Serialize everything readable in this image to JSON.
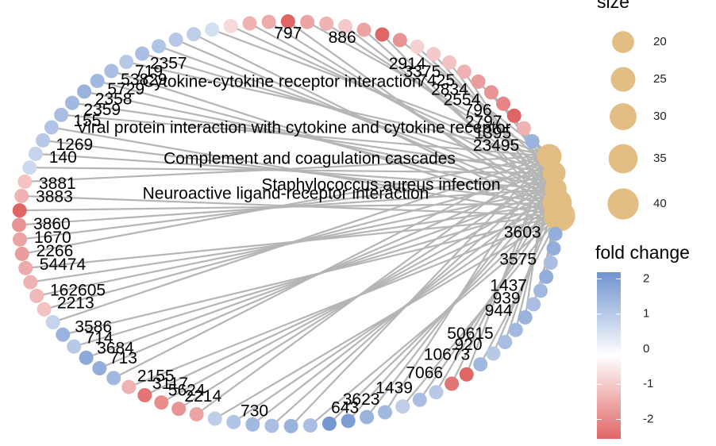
{
  "size_legend": {
    "title": "size",
    "values": [
      20,
      25,
      30,
      35,
      40
    ]
  },
  "color_legend": {
    "title": "fold change",
    "ticks": [
      2,
      1,
      0,
      -1,
      -2
    ],
    "colors": [
      "#e06666",
      "#ffffff",
      "#6f93cf"
    ]
  },
  "pathways": [
    {
      "label": "Cytokine-cytokine receptor interaction",
      "size": 40
    },
    {
      "label": "Viral protein interaction with cytokine and cytokine receptor",
      "size": 25
    },
    {
      "label": "Complement and coagulation cascades",
      "size": 22
    },
    {
      "label": "Staphylococcus aureus infection",
      "size": 20
    },
    {
      "label": "Neuroactive ligand-receptor interaction",
      "size": 35
    }
  ],
  "genes": [
    {
      "label": "3603",
      "fold_change": 1.5
    },
    {
      "label": null,
      "fold_change": 1.5
    },
    {
      "label": "3575",
      "fold_change": 1.2
    },
    {
      "label": null,
      "fold_change": 1.5
    },
    {
      "label": "1437",
      "fold_change": 1.3
    },
    {
      "label": "939",
      "fold_change": 1.2
    },
    {
      "label": "944",
      "fold_change": 1.4
    },
    {
      "label": null,
      "fold_change": 1.3
    },
    {
      "label": "50615",
      "fold_change": 1.2
    },
    {
      "label": "920",
      "fold_change": 1.0
    },
    {
      "label": "10673",
      "fold_change": 1.3
    },
    {
      "label": null,
      "fold_change": -2.0
    },
    {
      "label": "7066",
      "fold_change": -1.8
    },
    {
      "label": null,
      "fold_change": 1.0
    },
    {
      "label": "1439",
      "fold_change": 1.2
    },
    {
      "label": null,
      "fold_change": 0.9
    },
    {
      "label": "3623",
      "fold_change": 1.3
    },
    {
      "label": null,
      "fold_change": 1.4
    },
    {
      "label": "643",
      "fold_change": 1.8
    },
    {
      "label": null,
      "fold_change": 1.9
    },
    {
      "label": null,
      "fold_change": 1.2
    },
    {
      "label": null,
      "fold_change": 1.4
    },
    {
      "label": null,
      "fold_change": 1.2
    },
    {
      "label": "730",
      "fold_change": 1.3
    },
    {
      "label": null,
      "fold_change": 1.1
    },
    {
      "label": null,
      "fold_change": 0.9
    },
    {
      "label": null,
      "fold_change": -1.2
    },
    {
      "label": "2214",
      "fold_change": -1.4
    },
    {
      "label": "5624",
      "fold_change": -1.5
    },
    {
      "label": "3117",
      "fold_change": -1.8
    },
    {
      "label": "2155",
      "fold_change": -1.0
    },
    {
      "label": null,
      "fold_change": 1.3
    },
    {
      "label": "713",
      "fold_change": 1.5
    },
    {
      "label": "3684",
      "fold_change": 1.6
    },
    {
      "label": "714",
      "fold_change": 1.0
    },
    {
      "label": "3586",
      "fold_change": 1.4
    },
    {
      "label": null,
      "fold_change": 0.8
    },
    {
      "label": "2213",
      "fold_change": -0.8
    },
    {
      "label": "162605",
      "fold_change": -0.9
    },
    {
      "label": null,
      "fold_change": -1.0
    },
    {
      "label": "54474",
      "fold_change": -1.1
    },
    {
      "label": "2266",
      "fold_change": -1.3
    },
    {
      "label": "1670",
      "fold_change": -1.2
    },
    {
      "label": "3860",
      "fold_change": -1.4
    },
    {
      "label": null,
      "fold_change": -2.2
    },
    {
      "label": "3883",
      "fold_change": -1.0
    },
    {
      "label": "3881",
      "fold_change": -0.8
    },
    {
      "label": null,
      "fold_change": 0.7
    },
    {
      "label": "140",
      "fold_change": 0.8
    },
    {
      "label": "1269",
      "fold_change": 1.0
    },
    {
      "label": null,
      "fold_change": 1.1
    },
    {
      "label": "155",
      "fold_change": 1.2
    },
    {
      "label": "2359",
      "fold_change": 1.3
    },
    {
      "label": "2358",
      "fold_change": 1.4
    },
    {
      "label": "5729",
      "fold_change": 1.3
    },
    {
      "label": "53829",
      "fold_change": 1.2
    },
    {
      "label": "719",
      "fold_change": 1.0
    },
    {
      "label": "2357",
      "fold_change": 1.2
    },
    {
      "label": null,
      "fold_change": 1.1
    },
    {
      "label": null,
      "fold_change": 1.0
    },
    {
      "label": null,
      "fold_change": 0.9
    },
    {
      "label": null,
      "fold_change": 0.6
    },
    {
      "label": null,
      "fold_change": -0.5
    },
    {
      "label": null,
      "fold_change": -1.0
    },
    {
      "label": null,
      "fold_change": -1.1
    },
    {
      "label": "797",
      "fold_change": -2.0
    },
    {
      "label": null,
      "fold_change": -1.2
    },
    {
      "label": null,
      "fold_change": -1.0
    },
    {
      "label": "886",
      "fold_change": -0.7
    },
    {
      "label": null,
      "fold_change": -1.2
    },
    {
      "label": null,
      "fold_change": -2.2
    },
    {
      "label": null,
      "fold_change": -1.4
    },
    {
      "label": null,
      "fold_change": -0.6
    },
    {
      "label": "2914",
      "fold_change": -0.7
    },
    {
      "label": "3375",
      "fold_change": -0.8
    },
    {
      "label": "7425",
      "fold_change": -1.0
    },
    {
      "label": "2834",
      "fold_change": -1.3
    },
    {
      "label": "2554",
      "fold_change": -1.4
    },
    {
      "label": "796",
      "fold_change": -1.6
    },
    {
      "label": "2797",
      "fold_change": -2.1
    },
    {
      "label": "1395",
      "fold_change": -1.0
    },
    {
      "label": "23495",
      "fold_change": 1.4
    }
  ]
}
